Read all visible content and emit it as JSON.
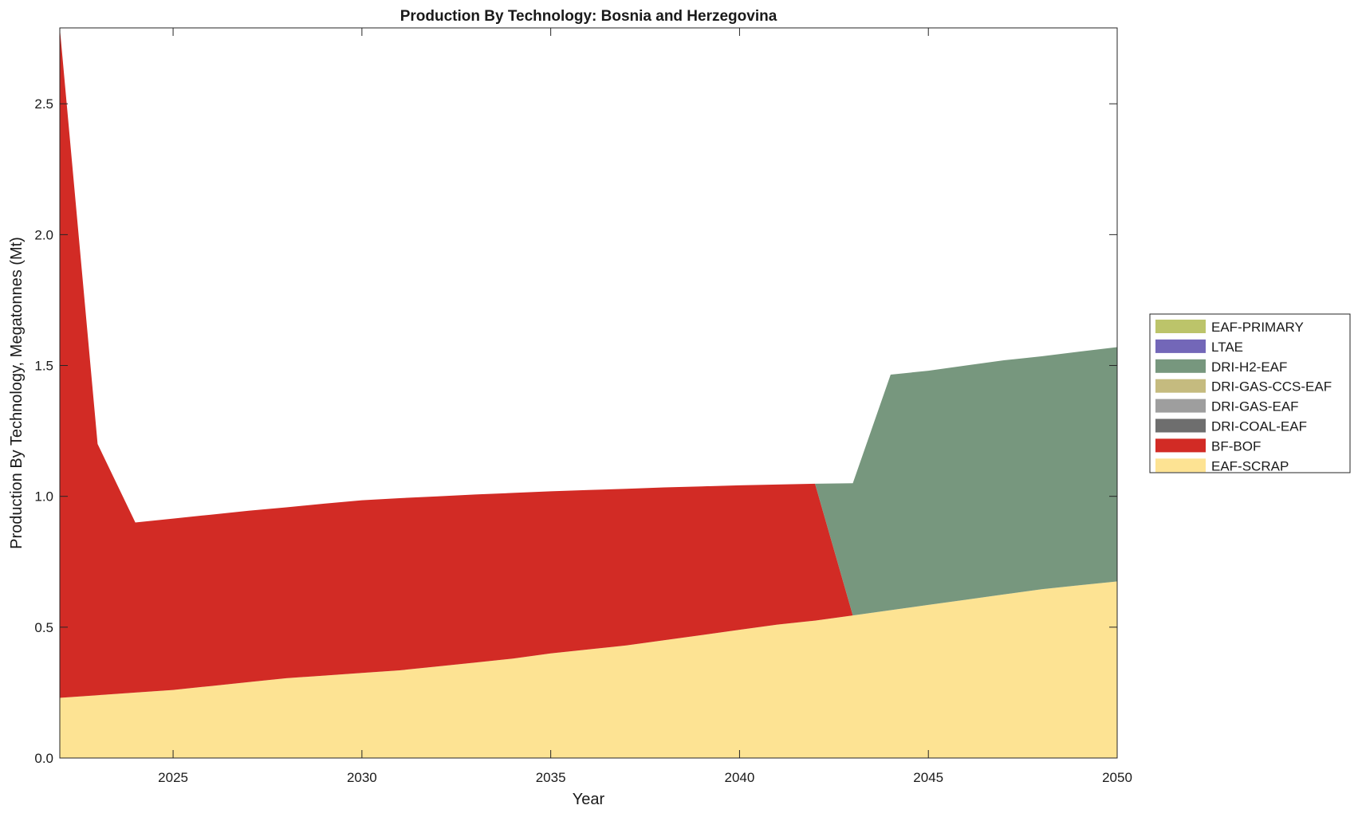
{
  "chart_data": {
    "type": "area",
    "stacked": true,
    "title": "Production By Technology: Bosnia and Herzegovina",
    "xlabel": "Year",
    "ylabel": "Production By Technology, Megatonnes (Mt)",
    "xlim": [
      2022,
      2050
    ],
    "ylim": [
      0,
      2.79
    ],
    "xticks": [
      2025,
      2030,
      2035,
      2040,
      2045,
      2050
    ],
    "xtick_labels": [
      "2025",
      "2030",
      "2035",
      "2040",
      "2045",
      "2050"
    ],
    "yticks": [
      0,
      0.5,
      1.0,
      1.5,
      2.0,
      2.5
    ],
    "ytick_labels": [
      "0.0",
      "0.5",
      "1.0",
      "1.5",
      "2.0",
      "2.5"
    ],
    "grid": false,
    "legend_position": "right",
    "x": [
      2022,
      2023,
      2024,
      2025,
      2026,
      2027,
      2028,
      2029,
      2030,
      2031,
      2032,
      2033,
      2034,
      2035,
      2036,
      2037,
      2038,
      2039,
      2040,
      2041,
      2042,
      2043,
      2044,
      2045,
      2046,
      2047,
      2048,
      2049,
      2050
    ],
    "series": [
      {
        "name": "EAF-SCRAP",
        "color": "#fde393",
        "values": [
          0.23,
          0.24,
          0.25,
          0.26,
          0.275,
          0.29,
          0.305,
          0.315,
          0.325,
          0.335,
          0.35,
          0.365,
          0.38,
          0.4,
          0.415,
          0.43,
          0.45,
          0.47,
          0.49,
          0.51,
          0.525,
          0.545,
          0.565,
          0.585,
          0.605,
          0.625,
          0.645,
          0.66,
          0.675
        ]
      },
      {
        "name": "BF-BOF",
        "color": "#d22b25",
        "values": [
          2.56,
          0.96,
          0.65,
          0.655,
          0.655,
          0.655,
          0.653,
          0.657,
          0.66,
          0.658,
          0.65,
          0.642,
          0.633,
          0.619,
          0.609,
          0.599,
          0.584,
          0.568,
          0.552,
          0.535,
          0.523,
          0,
          0,
          0,
          0,
          0,
          0,
          0,
          0
        ]
      },
      {
        "name": "DRI-COAL-EAF",
        "color": "#6e6e6e",
        "values": [
          0,
          0,
          0,
          0,
          0,
          0,
          0,
          0,
          0,
          0,
          0,
          0,
          0,
          0,
          0,
          0,
          0,
          0,
          0,
          0,
          0,
          0,
          0,
          0,
          0,
          0,
          0,
          0,
          0
        ]
      },
      {
        "name": "DRI-GAS-EAF",
        "color": "#9e9e9e",
        "values": [
          0,
          0,
          0,
          0,
          0,
          0,
          0,
          0,
          0,
          0,
          0,
          0,
          0,
          0,
          0,
          0,
          0,
          0,
          0,
          0,
          0,
          0,
          0,
          0,
          0,
          0,
          0,
          0,
          0
        ]
      },
      {
        "name": "DRI-GAS-CCS-EAF",
        "color": "#c5bb7f",
        "values": [
          0,
          0,
          0,
          0,
          0,
          0,
          0,
          0,
          0,
          0,
          0,
          0,
          0,
          0,
          0,
          0,
          0,
          0,
          0,
          0,
          0,
          0,
          0,
          0,
          0,
          0,
          0,
          0,
          0
        ]
      },
      {
        "name": "DRI-H2-EAF",
        "color": "#77977e",
        "values": [
          0,
          0,
          0,
          0,
          0,
          0,
          0,
          0,
          0,
          0,
          0,
          0,
          0,
          0,
          0,
          0,
          0,
          0,
          0,
          0,
          0,
          0.505,
          0.9,
          0.895,
          0.895,
          0.895,
          0.89,
          0.893,
          0.895
        ]
      },
      {
        "name": "LTAE",
        "color": "#7367b8",
        "values": [
          0,
          0,
          0,
          0,
          0,
          0,
          0,
          0,
          0,
          0,
          0,
          0,
          0,
          0,
          0,
          0,
          0,
          0,
          0,
          0,
          0,
          0,
          0,
          0,
          0,
          0,
          0,
          0,
          0
        ]
      },
      {
        "name": "EAF-PRIMARY",
        "color": "#bcc46a",
        "values": [
          0,
          0,
          0,
          0,
          0,
          0,
          0,
          0,
          0,
          0,
          0,
          0,
          0,
          0,
          0,
          0,
          0,
          0,
          0,
          0,
          0,
          0,
          0,
          0,
          0,
          0,
          0,
          0,
          0
        ]
      }
    ],
    "legend": [
      "EAF-PRIMARY",
      "LTAE",
      "DRI-H2-EAF",
      "DRI-GAS-CCS-EAF",
      "DRI-GAS-EAF",
      "DRI-COAL-EAF",
      "BF-BOF",
      "EAF-SCRAP"
    ]
  }
}
